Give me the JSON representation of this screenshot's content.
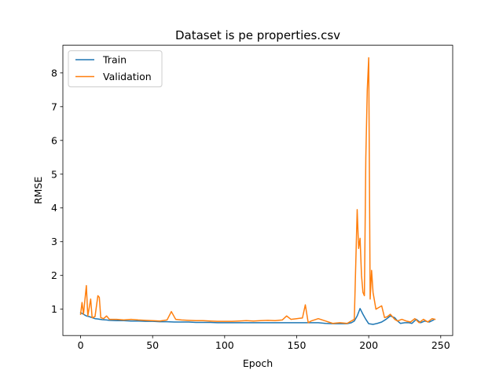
{
  "chart_data": {
    "type": "line",
    "title": "Dataset is pe properties.csv",
    "xlabel": "Epoch",
    "ylabel": "RMSE",
    "xlim": [
      -12.3,
      258.3
    ],
    "ylim": [
      0.22,
      8.82
    ],
    "xticks": [
      0,
      50,
      100,
      150,
      200,
      250
    ],
    "yticks": [
      1,
      2,
      3,
      4,
      5,
      6,
      7,
      8
    ],
    "legend_position": "top-left",
    "grid": false,
    "series": [
      {
        "name": "Train",
        "color": "#1f77b4",
        "points": [
          [
            0,
            0.9
          ],
          [
            2,
            0.85
          ],
          [
            4,
            0.8
          ],
          [
            6,
            0.78
          ],
          [
            8,
            0.75
          ],
          [
            10,
            0.72
          ],
          [
            12,
            0.71
          ],
          [
            15,
            0.69
          ],
          [
            18,
            0.68
          ],
          [
            20,
            0.67
          ],
          [
            25,
            0.66
          ],
          [
            30,
            0.66
          ],
          [
            35,
            0.65
          ],
          [
            40,
            0.65
          ],
          [
            45,
            0.64
          ],
          [
            50,
            0.64
          ],
          [
            55,
            0.63
          ],
          [
            60,
            0.63
          ],
          [
            65,
            0.62
          ],
          [
            70,
            0.62
          ],
          [
            75,
            0.62
          ],
          [
            80,
            0.61
          ],
          [
            85,
            0.61
          ],
          [
            90,
            0.61
          ],
          [
            95,
            0.6
          ],
          [
            100,
            0.6
          ],
          [
            105,
            0.6
          ],
          [
            110,
            0.6
          ],
          [
            115,
            0.6
          ],
          [
            120,
            0.6
          ],
          [
            125,
            0.6
          ],
          [
            130,
            0.6
          ],
          [
            135,
            0.6
          ],
          [
            140,
            0.6
          ],
          [
            145,
            0.6
          ],
          [
            150,
            0.6
          ],
          [
            155,
            0.6
          ],
          [
            160,
            0.6
          ],
          [
            165,
            0.6
          ],
          [
            170,
            0.58
          ],
          [
            175,
            0.57
          ],
          [
            180,
            0.57
          ],
          [
            185,
            0.57
          ],
          [
            188,
            0.6
          ],
          [
            190,
            0.65
          ],
          [
            192,
            0.8
          ],
          [
            194,
            1.02
          ],
          [
            196,
            0.85
          ],
          [
            198,
            0.7
          ],
          [
            200,
            0.57
          ],
          [
            203,
            0.55
          ],
          [
            206,
            0.58
          ],
          [
            209,
            0.62
          ],
          [
            212,
            0.7
          ],
          [
            215,
            0.8
          ],
          [
            218,
            0.75
          ],
          [
            220,
            0.65
          ],
          [
            222,
            0.58
          ],
          [
            225,
            0.6
          ],
          [
            228,
            0.6
          ],
          [
            230,
            0.58
          ],
          [
            233,
            0.7
          ],
          [
            236,
            0.6
          ],
          [
            239,
            0.65
          ],
          [
            242,
            0.62
          ],
          [
            245,
            0.68
          ]
        ]
      },
      {
        "name": "Validation",
        "color": "#ff7f0e",
        "points": [
          [
            0,
            0.85
          ],
          [
            1,
            1.2
          ],
          [
            2,
            0.85
          ],
          [
            4,
            1.7
          ],
          [
            5,
            0.8
          ],
          [
            7,
            1.3
          ],
          [
            8,
            0.75
          ],
          [
            10,
            0.78
          ],
          [
            12,
            1.4
          ],
          [
            13,
            1.35
          ],
          [
            14,
            0.75
          ],
          [
            16,
            0.72
          ],
          [
            18,
            0.8
          ],
          [
            20,
            0.7
          ],
          [
            25,
            0.7
          ],
          [
            30,
            0.68
          ],
          [
            35,
            0.7
          ],
          [
            40,
            0.68
          ],
          [
            45,
            0.67
          ],
          [
            50,
            0.66
          ],
          [
            55,
            0.65
          ],
          [
            60,
            0.68
          ],
          [
            63,
            0.93
          ],
          [
            66,
            0.7
          ],
          [
            70,
            0.68
          ],
          [
            75,
            0.67
          ],
          [
            80,
            0.66
          ],
          [
            85,
            0.66
          ],
          [
            90,
            0.65
          ],
          [
            95,
            0.64
          ],
          [
            100,
            0.64
          ],
          [
            105,
            0.64
          ],
          [
            110,
            0.65
          ],
          [
            115,
            0.66
          ],
          [
            120,
            0.65
          ],
          [
            125,
            0.66
          ],
          [
            130,
            0.67
          ],
          [
            135,
            0.66
          ],
          [
            140,
            0.68
          ],
          [
            143,
            0.8
          ],
          [
            146,
            0.7
          ],
          [
            150,
            0.72
          ],
          [
            154,
            0.74
          ],
          [
            156,
            1.13
          ],
          [
            158,
            0.6
          ],
          [
            160,
            0.65
          ],
          [
            165,
            0.72
          ],
          [
            170,
            0.65
          ],
          [
            175,
            0.58
          ],
          [
            180,
            0.6
          ],
          [
            185,
            0.58
          ],
          [
            190,
            0.7
          ],
          [
            192,
            3.95
          ],
          [
            193,
            2.8
          ],
          [
            194,
            3.1
          ],
          [
            195,
            2.0
          ],
          [
            196,
            1.5
          ],
          [
            197,
            1.4
          ],
          [
            198,
            5.5
          ],
          [
            199,
            7.5
          ],
          [
            200,
            8.45
          ],
          [
            201,
            1.3
          ],
          [
            202,
            2.15
          ],
          [
            203,
            1.5
          ],
          [
            205,
            1.0
          ],
          [
            207,
            1.05
          ],
          [
            209,
            1.1
          ],
          [
            211,
            0.75
          ],
          [
            213,
            0.78
          ],
          [
            215,
            0.85
          ],
          [
            218,
            0.7
          ],
          [
            220,
            0.65
          ],
          [
            223,
            0.7
          ],
          [
            226,
            0.65
          ],
          [
            229,
            0.62
          ],
          [
            232,
            0.72
          ],
          [
            235,
            0.6
          ],
          [
            238,
            0.7
          ],
          [
            241,
            0.62
          ],
          [
            244,
            0.72
          ],
          [
            246,
            0.7
          ]
        ]
      }
    ]
  }
}
